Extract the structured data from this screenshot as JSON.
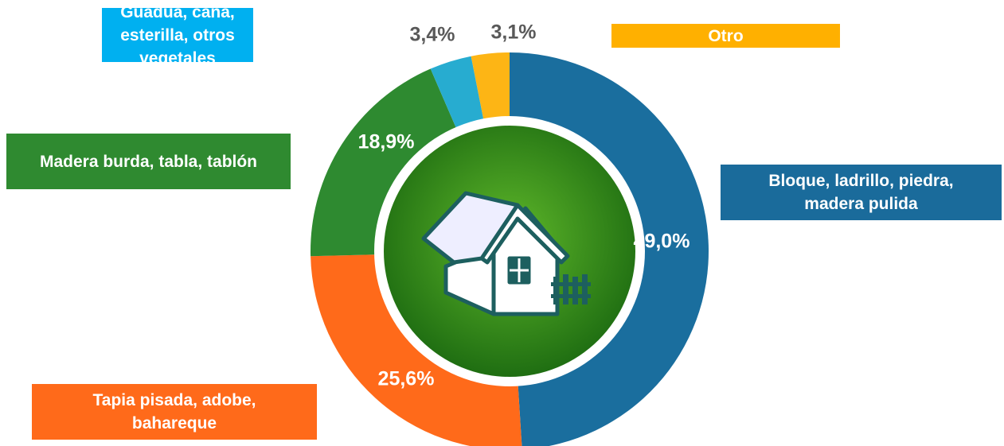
{
  "chart_data": {
    "type": "pie",
    "categories": [
      "Bloque, ladrillo, piedra, madera pulida",
      "Tapia pisada, adobe, bahareque",
      "Madera burda, tabla, tablón",
      "Guadua, caña, esterilla, otros vegetales",
      "Otro"
    ],
    "values": [
      49.0,
      25.6,
      18.9,
      3.4,
      3.1
    ],
    "value_labels": [
      "49,0%",
      "25,6%",
      "18,9%",
      "3,4%",
      "3,1%"
    ],
    "colors": [
      "#1a6e9e",
      "#ff6a1a",
      "#2e8a30",
      "#27acd0",
      "#fdb515"
    ],
    "legend_colors": [
      "#1a6b9b",
      "#ff6a1a",
      "#2f8a30",
      "#00b0f0",
      "#ffb000"
    ]
  }
}
